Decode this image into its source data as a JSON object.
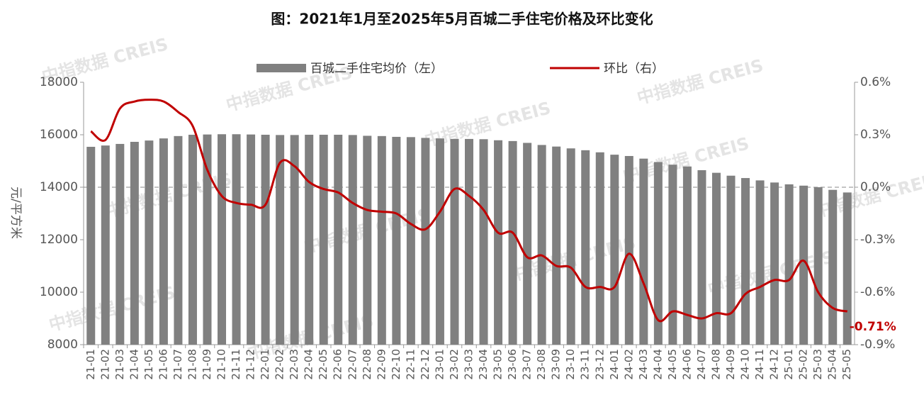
{
  "chart_data": {
    "type": "bar_line",
    "title": "图：2021年1月至2025年5月百城二手住宅价格及环比变化",
    "y_label": "元/平方米",
    "watermark": "中指数据 CREIS",
    "categories": [
      "21-01",
      "21-02",
      "21-03",
      "21-04",
      "21-05",
      "21-06",
      "21-07",
      "21-08",
      "21-09",
      "21-10",
      "21-11",
      "21-12",
      "22-01",
      "22-02",
      "22-03",
      "22-04",
      "22-05",
      "22-06",
      "22-07",
      "22-08",
      "22-09",
      "22-10",
      "22-11",
      "22-12",
      "23-01",
      "23-02",
      "23-03",
      "23-04",
      "23-05",
      "23-06",
      "23-07",
      "23-08",
      "23-09",
      "23-10",
      "23-11",
      "23-12",
      "24-01",
      "24-02",
      "24-03",
      "24-04",
      "24-05",
      "24-06",
      "24-07",
      "24-08",
      "24-09",
      "24-10",
      "24-11",
      "24-12",
      "25-01",
      "25-02",
      "25-03",
      "25-04",
      "25-05"
    ],
    "series": [
      {
        "name": "百城二手住宅均价（左）",
        "color": "#808080",
        "type": "bar",
        "values": [
          15540,
          15590,
          15650,
          15730,
          15780,
          15860,
          15950,
          16000,
          16010,
          16020,
          16020,
          16010,
          16000,
          15990,
          15990,
          16000,
          16000,
          16000,
          15990,
          15960,
          15950,
          15920,
          15910,
          15880,
          15860,
          15840,
          15840,
          15830,
          15790,
          15760,
          15690,
          15610,
          15550,
          15480,
          15410,
          15330,
          15240,
          15190,
          15090,
          14960,
          14860,
          14790,
          14650,
          14550,
          14440,
          14350,
          14260,
          14180,
          14110,
          14060,
          14000,
          13900,
          13800
        ]
      },
      {
        "name": "环比（右）",
        "color": "#c00000",
        "type": "line",
        "axis": "y2",
        "values": [
          0.32,
          0.27,
          0.45,
          0.49,
          0.5,
          0.49,
          0.43,
          0.35,
          0.1,
          -0.05,
          -0.09,
          -0.1,
          -0.1,
          0.14,
          0.12,
          0.03,
          -0.01,
          -0.03,
          -0.09,
          -0.13,
          -0.14,
          -0.15,
          -0.21,
          -0.24,
          -0.14,
          -0.01,
          -0.05,
          -0.13,
          -0.26,
          -0.26,
          -0.4,
          -0.39,
          -0.45,
          -0.46,
          -0.57,
          -0.57,
          -0.57,
          -0.38,
          -0.55,
          -0.76,
          -0.71,
          -0.73,
          -0.75,
          -0.72,
          -0.72,
          -0.61,
          -0.57,
          -0.53,
          -0.53,
          -0.42,
          -0.6,
          -0.69,
          -0.71
        ],
        "value_labels": [
          null,
          null,
          null,
          null,
          null,
          null,
          null,
          null,
          null,
          null,
          null,
          null,
          null,
          null,
          null,
          null,
          null,
          null,
          null,
          null,
          null,
          null,
          null,
          null,
          null,
          null,
          null,
          null,
          null,
          null,
          null,
          null,
          null,
          null,
          null,
          null,
          null,
          null,
          null,
          null,
          null,
          null,
          null,
          null,
          null,
          null,
          null,
          null,
          null,
          null,
          null,
          null,
          "-0.71%"
        ]
      }
    ],
    "ylim": [
      8000,
      18000
    ],
    "yticks": [
      8000,
      10000,
      12000,
      14000,
      16000,
      18000
    ],
    "y2lim": [
      -0.9,
      0.6
    ],
    "y2ticks": [
      {
        "value": -0.9,
        "label": "-0.9%"
      },
      {
        "value": -0.6,
        "label": "-0.6%"
      },
      {
        "value": -0.3,
        "label": "-0.3%"
      },
      {
        "value": 0,
        "label": "0.0%"
      },
      {
        "value": 0.3,
        "label": "0.3%"
      },
      {
        "value": 0.6,
        "label": "0.6%"
      }
    ],
    "y2_zero_line": true,
    "legend": "top"
  }
}
